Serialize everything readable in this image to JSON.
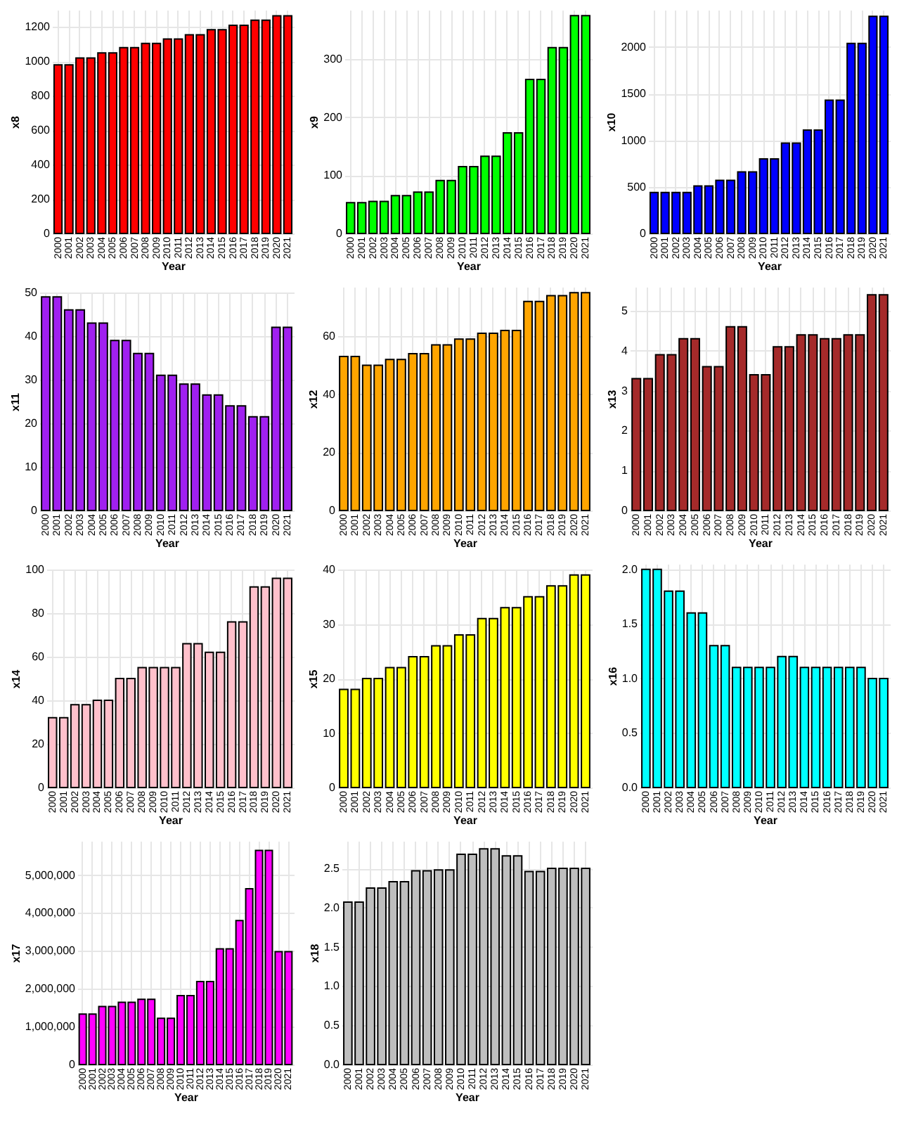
{
  "chart_data": [
    {
      "type": "bar",
      "xlabel": "Year",
      "ylabel": "x8",
      "color": "#ff0000",
      "grid": true,
      "ylim": [
        0,
        1300
      ],
      "yticks": [
        0,
        200,
        400,
        600,
        800,
        1000,
        1200
      ],
      "categories": [
        "2000",
        "2001",
        "2002",
        "2003",
        "2004",
        "2005",
        "2006",
        "2007",
        "2008",
        "2009",
        "2010",
        "2011",
        "2012",
        "2013",
        "2014",
        "2015",
        "2016",
        "2017",
        "2018",
        "2019",
        "2020",
        "2021"
      ],
      "values": [
        980,
        980,
        1020,
        1020,
        1050,
        1050,
        1080,
        1080,
        1105,
        1105,
        1130,
        1130,
        1155,
        1155,
        1185,
        1185,
        1210,
        1210,
        1240,
        1240,
        1265,
        1265
      ]
    },
    {
      "type": "bar",
      "xlabel": "Year",
      "ylabel": "x9",
      "color": "#00ff00",
      "grid": true,
      "ylim": [
        0,
        385
      ],
      "yticks": [
        0,
        100,
        200,
        300
      ],
      "categories": [
        "2000",
        "2001",
        "2002",
        "2003",
        "2004",
        "2005",
        "2006",
        "2007",
        "2008",
        "2009",
        "2010",
        "2011",
        "2012",
        "2013",
        "2014",
        "2015",
        "2016",
        "2017",
        "2018",
        "2019",
        "2020",
        "2021"
      ],
      "values": [
        53,
        53,
        55,
        55,
        65,
        65,
        71,
        71,
        91,
        91,
        115,
        115,
        133,
        133,
        173,
        173,
        265,
        265,
        320,
        320,
        375,
        375
      ]
    },
    {
      "type": "bar",
      "xlabel": "Year",
      "ylabel": "x10",
      "color": "#0000ff",
      "grid": true,
      "ylim": [
        0,
        2400
      ],
      "yticks": [
        0,
        500,
        1000,
        1500,
        2000
      ],
      "categories": [
        "2000",
        "2001",
        "2002",
        "2003",
        "2004",
        "2005",
        "2006",
        "2007",
        "2008",
        "2009",
        "2010",
        "2011",
        "2012",
        "2013",
        "2014",
        "2015",
        "2016",
        "2017",
        "2018",
        "2019",
        "2020",
        "2021"
      ],
      "values": [
        440,
        440,
        440,
        440,
        510,
        510,
        570,
        570,
        660,
        660,
        800,
        800,
        970,
        970,
        1110,
        1110,
        1430,
        1430,
        2040,
        2040,
        2330,
        2330
      ]
    },
    {
      "type": "bar",
      "xlabel": "Year",
      "ylabel": "x11",
      "color": "#a020f0",
      "grid": true,
      "ylim": [
        0,
        50
      ],
      "yticks": [
        0,
        10,
        20,
        30,
        40,
        50
      ],
      "categories": [
        "2000",
        "2001",
        "2002",
        "2003",
        "2004",
        "2005",
        "2006",
        "2007",
        "2008",
        "2009",
        "2010",
        "2011",
        "2012",
        "2013",
        "2014",
        "2015",
        "2016",
        "2017",
        "2018",
        "2019",
        "2020",
        "2021"
      ],
      "values": [
        49,
        49,
        46,
        46,
        43,
        43,
        39,
        39,
        36,
        36,
        31,
        31,
        29,
        29,
        26.5,
        26.5,
        24,
        24,
        21.5,
        21.5,
        42,
        42
      ]
    },
    {
      "type": "bar",
      "xlabel": "Year",
      "ylabel": "x12",
      "color": "#ffa500",
      "grid": true,
      "ylim": [
        0,
        77
      ],
      "yticks": [
        0,
        20,
        40,
        60
      ],
      "categories": [
        "2000",
        "2001",
        "2002",
        "2003",
        "2004",
        "2005",
        "2006",
        "2007",
        "2008",
        "2009",
        "2010",
        "2011",
        "2012",
        "2013",
        "2014",
        "2015",
        "2016",
        "2017",
        "2018",
        "2019",
        "2020",
        "2021"
      ],
      "values": [
        53,
        53,
        50,
        50,
        52,
        52,
        54,
        54,
        57,
        57,
        59,
        59,
        61,
        61,
        62,
        62,
        72,
        72,
        74,
        74,
        75,
        75
      ]
    },
    {
      "type": "bar",
      "xlabel": "Year",
      "ylabel": "x13",
      "color": "#a52a2a",
      "grid": true,
      "ylim": [
        0,
        5.6
      ],
      "yticks": [
        0,
        1,
        2,
        3,
        4,
        5
      ],
      "categories": [
        "2000",
        "2001",
        "2002",
        "2003",
        "2004",
        "2005",
        "2006",
        "2007",
        "2008",
        "2009",
        "2010",
        "2011",
        "2012",
        "2013",
        "2014",
        "2015",
        "2016",
        "2017",
        "2018",
        "2019",
        "2020",
        "2021"
      ],
      "values": [
        3.3,
        3.3,
        3.9,
        3.9,
        4.3,
        4.3,
        3.6,
        3.6,
        4.6,
        4.6,
        3.4,
        3.4,
        4.1,
        4.1,
        4.4,
        4.4,
        4.3,
        4.3,
        4.4,
        4.4,
        5.4,
        5.4
      ]
    },
    {
      "type": "bar",
      "xlabel": "Year",
      "ylabel": "x14",
      "color": "#ffc0cb",
      "grid": true,
      "ylim": [
        0,
        100
      ],
      "yticks": [
        0,
        20,
        40,
        60,
        80,
        100
      ],
      "categories": [
        "2000",
        "2001",
        "2002",
        "2003",
        "2004",
        "2005",
        "2006",
        "2007",
        "2008",
        "2009",
        "2010",
        "2011",
        "2012",
        "2013",
        "2014",
        "2015",
        "2016",
        "2017",
        "2018",
        "2019",
        "2020",
        "2021"
      ],
      "values": [
        32,
        32,
        38,
        38,
        40,
        40,
        50,
        50,
        55,
        55,
        55,
        55,
        66,
        66,
        62,
        62,
        76,
        76,
        92,
        92,
        96,
        96
      ]
    },
    {
      "type": "bar",
      "xlabel": "Year",
      "ylabel": "x15",
      "color": "#ffff00",
      "grid": true,
      "ylim": [
        0,
        40
      ],
      "yticks": [
        0,
        10,
        20,
        30,
        40
      ],
      "categories": [
        "2000",
        "2001",
        "2002",
        "2003",
        "2004",
        "2005",
        "2006",
        "2007",
        "2008",
        "2009",
        "2010",
        "2011",
        "2012",
        "2013",
        "2014",
        "2015",
        "2016",
        "2017",
        "2018",
        "2019",
        "2020",
        "2021"
      ],
      "values": [
        18,
        18,
        20,
        20,
        22,
        22,
        24,
        24,
        26,
        26,
        28,
        28,
        31,
        31,
        33,
        33,
        35,
        35,
        37,
        37,
        39,
        39
      ]
    },
    {
      "type": "bar",
      "xlabel": "Year",
      "ylabel": "x16",
      "color": "#00ffff",
      "grid": true,
      "ylim": [
        0,
        2.05
      ],
      "yticks": [
        {
          "value": 0,
          "label": "0.0"
        },
        0.5,
        {
          "value": 1,
          "label": "1.0"
        },
        1.5,
        {
          "value": 2,
          "label": "2.0"
        }
      ],
      "categories": [
        "2000",
        "2001",
        "2002",
        "2003",
        "2004",
        "2005",
        "2006",
        "2007",
        "2008",
        "2009",
        "2010",
        "2011",
        "2012",
        "2013",
        "2014",
        "2015",
        "2016",
        "2017",
        "2018",
        "2019",
        "2020",
        "2021"
      ],
      "values": [
        2.0,
        2.0,
        1.8,
        1.8,
        1.6,
        1.6,
        1.3,
        1.3,
        1.1,
        1.1,
        1.1,
        1.1,
        1.2,
        1.2,
        1.1,
        1.1,
        1.1,
        1.1,
        1.1,
        1.1,
        1.0,
        1.0
      ]
    },
    {
      "type": "bar",
      "xlabel": "Year",
      "ylabel": "x17",
      "color": "#ff00ff",
      "grid": true,
      "ylim": [
        0,
        5900000
      ],
      "yticks": [
        0,
        {
          "value": 1000000,
          "label": "1,000,000"
        },
        {
          "value": 2000000,
          "label": "2,000,000"
        },
        {
          "value": 3000000,
          "label": "3,000,000"
        },
        {
          "value": 4000000,
          "label": "4,000,000"
        },
        {
          "value": 5000000,
          "label": "5,000,000"
        }
      ],
      "categories": [
        "2000",
        "2001",
        "2002",
        "2003",
        "2004",
        "2005",
        "2006",
        "2007",
        "2008",
        "2009",
        "2010",
        "2011",
        "2012",
        "2013",
        "2014",
        "2015",
        "2016",
        "2017",
        "2018",
        "2019",
        "2020",
        "2021"
      ],
      "values": [
        1330000,
        1330000,
        1530000,
        1530000,
        1640000,
        1640000,
        1720000,
        1720000,
        1220000,
        1220000,
        1820000,
        1820000,
        2190000,
        2190000,
        3050000,
        3050000,
        3800000,
        4640000,
        5650000,
        5650000,
        2980000,
        2980000
      ]
    },
    {
      "type": "bar",
      "xlabel": "Year",
      "ylabel": "x18",
      "color": "#bebebe",
      "grid": true,
      "ylim": [
        0,
        2.85
      ],
      "yticks": [
        {
          "value": 0,
          "label": "0.0"
        },
        0.5,
        {
          "value": 1,
          "label": "1.0"
        },
        1.5,
        {
          "value": 2,
          "label": "2.0"
        },
        2.5
      ],
      "categories": [
        "2000",
        "2001",
        "2002",
        "2003",
        "2004",
        "2005",
        "2006",
        "2007",
        "2008",
        "2009",
        "2010",
        "2011",
        "2012",
        "2013",
        "2014",
        "2015",
        "2016",
        "2017",
        "2018",
        "2019",
        "2020",
        "2021"
      ],
      "values": [
        2.07,
        2.07,
        2.25,
        2.25,
        2.33,
        2.33,
        2.47,
        2.47,
        2.48,
        2.48,
        2.68,
        2.68,
        2.75,
        2.75,
        2.66,
        2.66,
        2.46,
        2.46,
        2.5,
        2.5,
        2.5,
        2.5
      ]
    }
  ]
}
